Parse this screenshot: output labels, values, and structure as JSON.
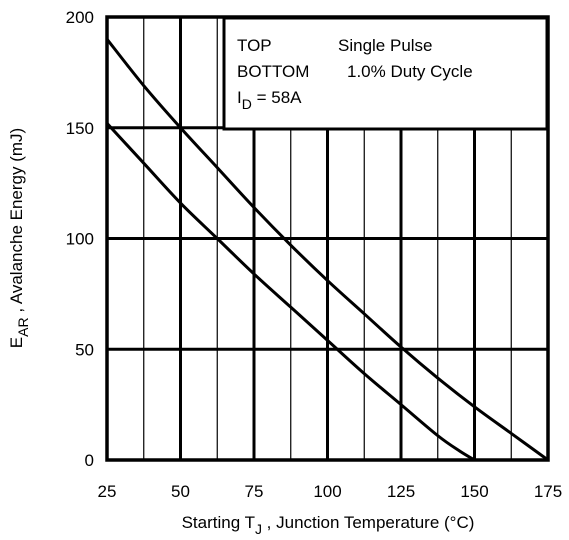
{
  "chart_data": {
    "type": "line",
    "xlabel": {
      "main": "Starting T",
      "sub": "J",
      "rest": " , Junction Temperature (°C)"
    },
    "ylabel": {
      "main": "E",
      "sub": "AR",
      "rest": " , Avalanche Energy (mJ)"
    },
    "xlim": [
      25,
      175
    ],
    "ylim": [
      0,
      200
    ],
    "x_ticks": [
      25,
      50,
      75,
      100,
      125,
      150,
      175
    ],
    "y_ticks": [
      0,
      50,
      100,
      150,
      200
    ],
    "x_minor_step": 12.5,
    "legend": {
      "placement": "top-right",
      "line1_a": "TOP",
      "line1_b": "Single Pulse",
      "line2_a": "BOTTOM",
      "line2_b": "1.0% Duty Cycle",
      "line3_main": "I",
      "line3_sub": "D",
      "line3_rest": " = 58A"
    },
    "series": [
      {
        "x": [
          25,
          37.5,
          50,
          62.5,
          75,
          87.5,
          100,
          112.5,
          125,
          137.5,
          150,
          162.5,
          175
        ],
        "y": [
          190,
          169,
          150,
          132,
          114,
          97,
          81,
          66,
          51,
          37,
          24,
          12,
          0
        ]
      },
      {
        "x": [
          25,
          37.5,
          50,
          62.5,
          75,
          87.5,
          100,
          112.5,
          125,
          137.5,
          145,
          150
        ],
        "y": [
          152,
          134,
          116,
          100,
          84,
          69,
          54,
          39,
          25,
          11,
          4,
          0
        ]
      }
    ],
    "colors": {
      "line": "#000000",
      "grid": "#000000",
      "background": "#ffffff"
    }
  }
}
